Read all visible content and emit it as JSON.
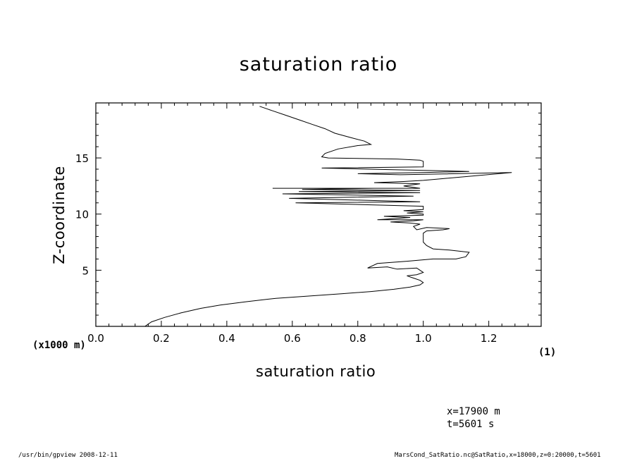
{
  "chart_data": {
    "type": "line",
    "title": "saturation ratio",
    "xlabel": "saturation ratio",
    "ylabel": "Z-coordinate",
    "x_unit_label": "(1)",
    "y_unit_label": "(x1000 m)",
    "xlim": [
      0.0,
      1.36
    ],
    "ylim": [
      0,
      19.9
    ],
    "x_ticks": [
      "0.0",
      "0.2",
      "0.4",
      "0.6",
      "0.8",
      "1.0",
      "1.2"
    ],
    "y_ticks": [
      "5",
      "10",
      "15"
    ],
    "grid": false,
    "series": [
      {
        "points": [
          [
            0.15,
            0.0
          ],
          [
            0.17,
            0.4
          ],
          [
            0.21,
            0.8
          ],
          [
            0.26,
            1.2
          ],
          [
            0.32,
            1.6
          ],
          [
            0.38,
            1.9
          ],
          [
            0.46,
            2.2
          ],
          [
            0.55,
            2.5
          ],
          [
            0.65,
            2.7
          ],
          [
            0.75,
            2.9
          ],
          [
            0.84,
            3.1
          ],
          [
            0.91,
            3.3
          ],
          [
            0.96,
            3.5
          ],
          [
            0.99,
            3.7
          ],
          [
            1.0,
            3.9
          ],
          [
            0.99,
            4.1
          ],
          [
            0.97,
            4.3
          ],
          [
            0.95,
            4.5
          ],
          [
            0.98,
            4.6
          ],
          [
            1.0,
            4.8
          ],
          [
            0.99,
            5.0
          ],
          [
            0.98,
            5.2
          ],
          [
            0.92,
            5.1
          ],
          [
            0.89,
            5.3
          ],
          [
            0.83,
            5.2
          ],
          [
            0.86,
            5.6
          ],
          [
            0.95,
            5.8
          ],
          [
            1.03,
            6.0
          ],
          [
            1.1,
            6.0
          ],
          [
            1.13,
            6.2
          ],
          [
            1.14,
            6.6
          ],
          [
            1.08,
            6.8
          ],
          [
            1.03,
            6.9
          ],
          [
            1.01,
            7.2
          ],
          [
            1.0,
            7.5
          ],
          [
            1.0,
            7.9
          ],
          [
            1.0,
            8.3
          ],
          [
            1.01,
            8.5
          ],
          [
            1.06,
            8.6
          ],
          [
            1.08,
            8.7
          ],
          [
            1.01,
            8.8
          ],
          [
            0.98,
            8.6
          ],
          [
            0.97,
            8.9
          ],
          [
            0.99,
            9.1
          ],
          [
            0.96,
            9.2
          ],
          [
            0.9,
            9.3
          ],
          [
            0.97,
            9.4
          ],
          [
            1.0,
            9.5
          ],
          [
            0.86,
            9.5
          ],
          [
            0.96,
            9.7
          ],
          [
            0.88,
            9.8
          ],
          [
            1.0,
            9.9
          ],
          [
            1.0,
            10.0
          ],
          [
            0.95,
            10.1
          ],
          [
            1.0,
            10.2
          ],
          [
            0.94,
            10.3
          ],
          [
            1.0,
            10.4
          ],
          [
            1.0,
            10.7
          ],
          [
            0.61,
            11.0
          ],
          [
            0.99,
            11.1
          ],
          [
            0.59,
            11.4
          ],
          [
            0.97,
            11.6
          ],
          [
            0.57,
            11.8
          ],
          [
            0.99,
            11.9
          ],
          [
            0.62,
            12.0
          ],
          [
            0.99,
            12.1
          ],
          [
            0.63,
            12.2
          ],
          [
            0.85,
            12.3
          ],
          [
            0.54,
            12.3
          ],
          [
            0.99,
            12.3
          ],
          [
            0.94,
            12.5
          ],
          [
            0.99,
            12.7
          ],
          [
            0.85,
            12.8
          ],
          [
            0.94,
            12.9
          ],
          [
            1.0,
            13.0
          ],
          [
            1.27,
            13.7
          ],
          [
            0.93,
            13.5
          ],
          [
            0.8,
            13.6
          ],
          [
            1.0,
            13.7
          ],
          [
            1.14,
            13.8
          ],
          [
            0.69,
            14.1
          ],
          [
            1.0,
            14.2
          ],
          [
            1.0,
            14.7
          ],
          [
            0.99,
            14.8
          ],
          [
            0.92,
            14.9
          ],
          [
            0.71,
            15.0
          ],
          [
            0.69,
            15.1
          ],
          [
            0.7,
            15.4
          ],
          [
            0.74,
            15.8
          ],
          [
            0.8,
            16.1
          ],
          [
            0.84,
            16.2
          ],
          [
            0.82,
            16.5
          ],
          [
            0.78,
            16.8
          ],
          [
            0.73,
            17.2
          ],
          [
            0.7,
            17.6
          ],
          [
            0.66,
            18.0
          ],
          [
            0.62,
            18.4
          ],
          [
            0.58,
            18.8
          ],
          [
            0.54,
            19.2
          ],
          [
            0.5,
            19.6
          ]
        ]
      }
    ]
  },
  "annotations": {
    "x_position": "x=17900 m",
    "time": "t=5601 s"
  },
  "footer": {
    "left": "/usr/bin/gpview   2008-12-11",
    "right": "MarsCond_SatRatio.nc@SatRatio,x=18000,z=0:20000,t=5601"
  }
}
